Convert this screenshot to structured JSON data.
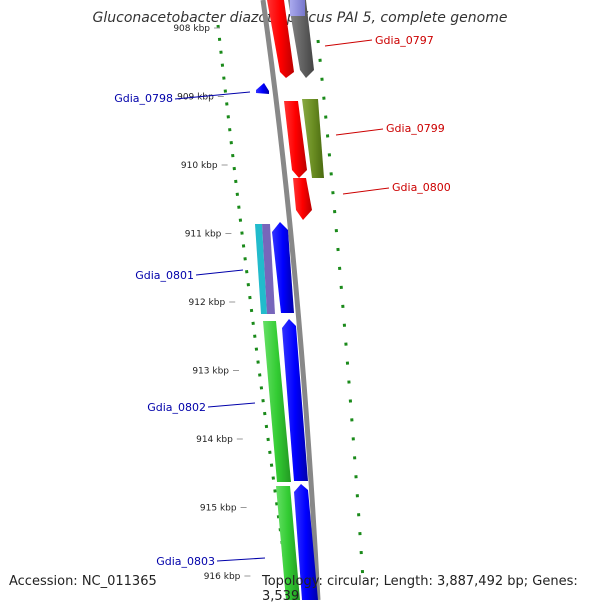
{
  "title": "Gluconacetobacter diazotrophicus PAI 5, complete genome",
  "accession": "Accession: NC_011365",
  "topology": "Topology: circular; Length: 3,887,492 bp; Genes: 3,539",
  "ticks": [
    "908 kbp",
    "909 kbp",
    "910 kbp",
    "911 kbp",
    "912 kbp",
    "913 kbp",
    "914 kbp",
    "915 kbp",
    "916 kbp"
  ],
  "genes": [
    {
      "id": "Gdia_0797",
      "color": "#cc0000"
    },
    {
      "id": "Gdia_0798",
      "color": "#0000aa"
    },
    {
      "id": "Gdia_0799",
      "color": "#cc0000"
    },
    {
      "id": "Gdia_0800",
      "color": "#cc0000"
    },
    {
      "id": "Gdia_0801",
      "color": "#0000aa"
    },
    {
      "id": "Gdia_0802",
      "color": "#0000aa"
    },
    {
      "id": "Gdia_0803",
      "color": "#0000aa"
    }
  ],
  "colors": {
    "forward_cds": "#ff0000",
    "reverse_cds": "#0000ff",
    "green_feature": "#33cc33",
    "olive_feature": "#6b8e23",
    "gray_feature": "#666666",
    "backbone": "#888888",
    "gc_dots": "#1a8a1a"
  }
}
